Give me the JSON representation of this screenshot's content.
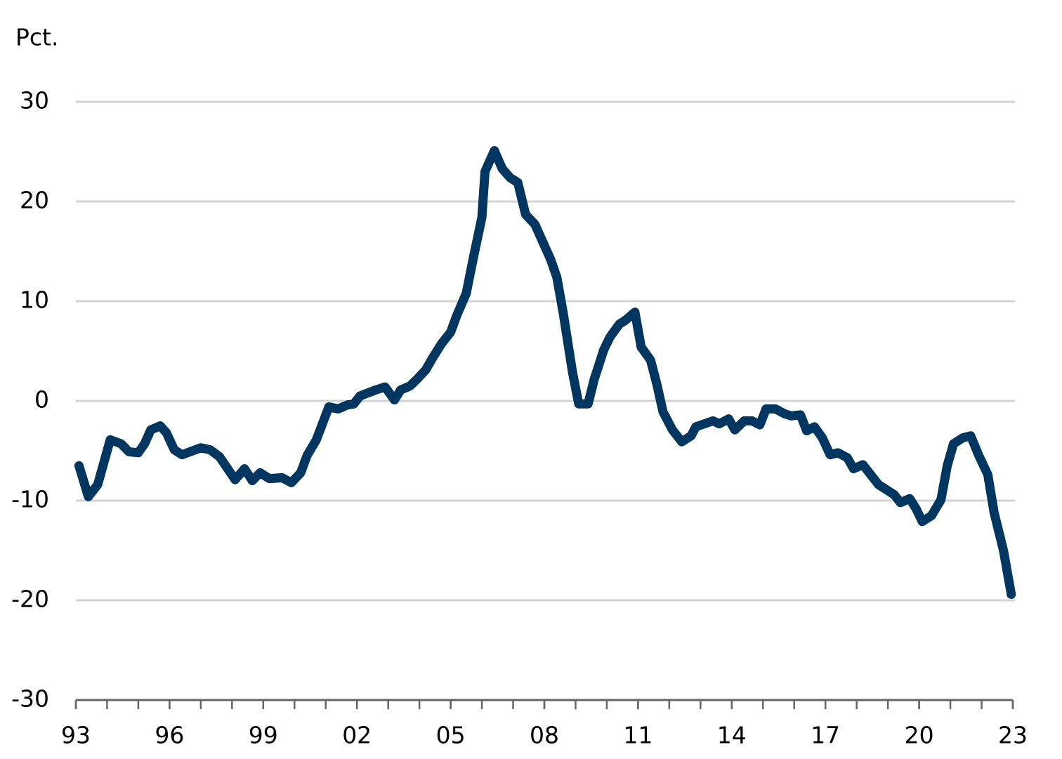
{
  "chart_data": {
    "type": "line",
    "y_axis_label": "Pct.",
    "ylim": [
      -30,
      30
    ],
    "yticks": [
      -30,
      -20,
      -10,
      0,
      10,
      20,
      30
    ],
    "xlim": [
      1993,
      2023
    ],
    "xticks": [
      {
        "value": 1993,
        "label": "93"
      },
      {
        "value": 1996,
        "label": "96"
      },
      {
        "value": 1999,
        "label": "99"
      },
      {
        "value": 2002,
        "label": "02"
      },
      {
        "value": 2005,
        "label": "05"
      },
      {
        "value": 2008,
        "label": "08"
      },
      {
        "value": 2011,
        "label": "11"
      },
      {
        "value": 2014,
        "label": "14"
      },
      {
        "value": 2017,
        "label": "17"
      },
      {
        "value": 2020,
        "label": "20"
      },
      {
        "value": 2023,
        "label": "23"
      }
    ],
    "xminor_ticks": [
      1993,
      1994,
      1995,
      1996,
      1997,
      1998,
      1999,
      2000,
      2001,
      2002,
      2003,
      2004,
      2005,
      2006,
      2007,
      2008,
      2009,
      2010,
      2011,
      2012,
      2013,
      2014,
      2015,
      2016,
      2017,
      2018,
      2019,
      2020,
      2021,
      2022,
      2023
    ],
    "grid": true,
    "series": [
      {
        "color": "#003660",
        "x": [
          1993.1,
          1993.4,
          1993.7,
          1994.1,
          1994.45,
          1994.7,
          1995.0,
          1995.2,
          1995.4,
          1995.7,
          1995.9,
          1996.15,
          1996.4,
          1997.0,
          1997.3,
          1997.6,
          1998.1,
          1998.4,
          1998.65,
          1998.9,
          1999.2,
          1999.6,
          1999.9,
          2000.2,
          2000.4,
          2000.7,
          2001.1,
          2001.4,
          2001.7,
          2001.9,
          2002.1,
          2002.6,
          2002.9,
          2003.2,
          2003.4,
          2003.7,
          2003.9,
          2004.2,
          2004.4,
          2004.7,
          2005.0,
          2005.2,
          2005.5,
          2005.75,
          2006.0,
          2006.1,
          2006.4,
          2006.65,
          2006.9,
          2007.15,
          2007.4,
          2007.7,
          2008.2,
          2008.4,
          2008.6,
          2008.9,
          2009.1,
          2009.4,
          2009.6,
          2009.9,
          2010.1,
          2010.4,
          2010.6,
          2010.9,
          2011.1,
          2011.4,
          2011.6,
          2011.8,
          2012.1,
          2012.4,
          2012.7,
          2012.85,
          2013.4,
          2013.6,
          2013.9,
          2014.1,
          2014.4,
          2014.65,
          2014.9,
          2015.1,
          2015.4,
          2015.7,
          2015.9,
          2016.2,
          2016.4,
          2016.65,
          2016.9,
          2017.15,
          2017.4,
          2017.7,
          2017.9,
          2018.2,
          2018.4,
          2018.7,
          2019.2,
          2019.4,
          2019.7,
          2019.9,
          2020.1,
          2020.4,
          2020.7,
          2020.9,
          2021.1,
          2021.4,
          2021.65,
          2021.9,
          2022.2,
          2022.4,
          2022.7,
          2022.95
        ],
        "values": [
          -6.5,
          -9.6,
          -8.4,
          -3.9,
          -4.3,
          -5.1,
          -5.2,
          -4.3,
          -2.9,
          -2.5,
          -3.2,
          -4.9,
          -5.4,
          -4.7,
          -4.9,
          -5.6,
          -7.9,
          -6.8,
          -8.0,
          -7.2,
          -7.8,
          -7.7,
          -8.2,
          -7.2,
          -5.5,
          -3.9,
          -0.6,
          -0.8,
          -0.4,
          -0.3,
          0.5,
          1.1,
          1.4,
          0.1,
          1.1,
          1.5,
          2.1,
          3.1,
          4.2,
          5.7,
          6.9,
          8.6,
          10.8,
          14.7,
          18.4,
          23.0,
          25.1,
          23.3,
          22.4,
          21.9,
          18.7,
          17.7,
          14.2,
          12.4,
          8.9,
          2.9,
          -0.3,
          -0.3,
          2.2,
          5.1,
          6.4,
          7.7,
          8.1,
          8.9,
          5.4,
          4.1,
          1.7,
          -1.1,
          -2.9,
          -4.1,
          -3.5,
          -2.6,
          -2.0,
          -2.3,
          -1.8,
          -2.9,
          -2.0,
          -2.0,
          -2.4,
          -0.8,
          -0.8,
          -1.3,
          -1.5,
          -1.4,
          -3.0,
          -2.6,
          -3.7,
          -5.4,
          -5.2,
          -5.7,
          -6.8,
          -6.4,
          -7.2,
          -8.4,
          -9.4,
          -10.2,
          -9.8,
          -10.8,
          -12.1,
          -11.5,
          -9.9,
          -6.5,
          -4.3,
          -3.7,
          -3.5,
          -5.4,
          -7.4,
          -11.2,
          -15.0,
          -19.4
        ]
      }
    ]
  }
}
